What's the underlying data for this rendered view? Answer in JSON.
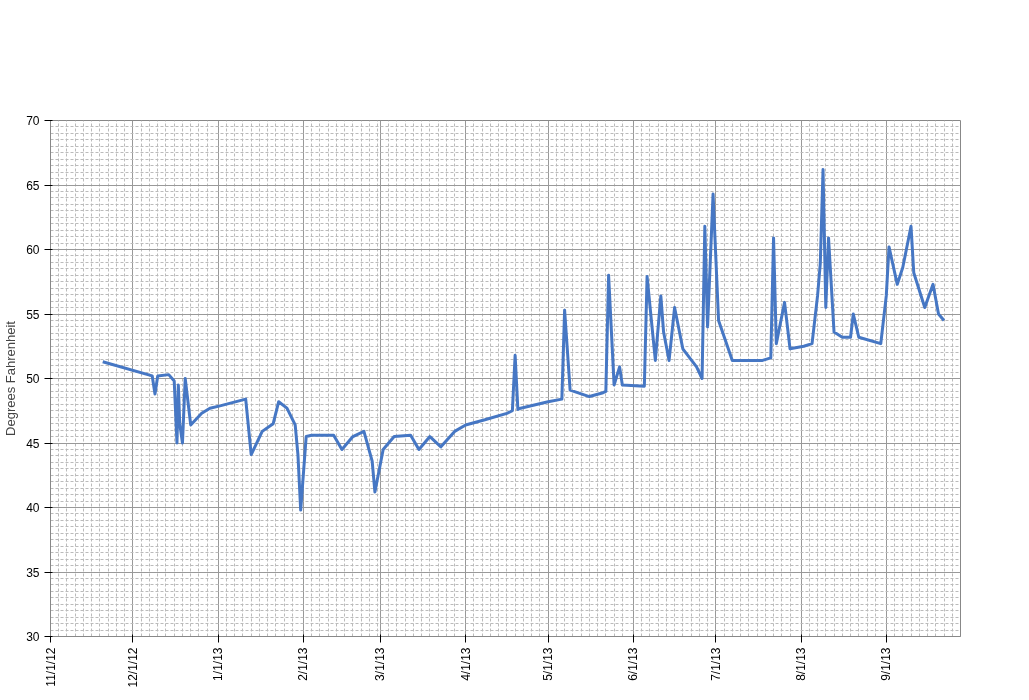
{
  "chart_data": {
    "type": "line",
    "ylabel": "Degrees Fahrenheit",
    "x": [
      "2012-11-20",
      "2012-12-08",
      "2012-12-09",
      "2012-12-10",
      "2012-12-14",
      "2012-12-16",
      "2012-12-17T00:00",
      "2012-12-17T12:00",
      "2012-12-18",
      "2012-12-19",
      "2012-12-20",
      "2012-12-22",
      "2012-12-26",
      "2012-12-29",
      "2013-01-02",
      "2013-01-11",
      "2013-01-13",
      "2013-01-17",
      "2013-01-21",
      "2013-01-23",
      "2013-01-26",
      "2013-01-29",
      "2013-01-30",
      "2013-01-31",
      "2013-02-02",
      "2013-02-04",
      "2013-02-12",
      "2013-02-15",
      "2013-02-19",
      "2013-02-23",
      "2013-02-26",
      "2013-02-27",
      "2013-03-02",
      "2013-03-06",
      "2013-03-12",
      "2013-03-15",
      "2013-03-19",
      "2013-03-23",
      "2013-03-28",
      "2013-04-01",
      "2013-04-08",
      "2013-04-16",
      "2013-04-18",
      "2013-04-19",
      "2013-04-20",
      "2013-04-21",
      "2013-05-01",
      "2013-05-06",
      "2013-05-07",
      "2013-05-09",
      "2013-05-16",
      "2013-05-21",
      "2013-05-22",
      "2013-05-23",
      "2013-05-25",
      "2013-05-27",
      "2013-05-28",
      "2013-06-05",
      "2013-06-06",
      "2013-06-09",
      "2013-06-11",
      "2013-06-12",
      "2013-06-14",
      "2013-06-16",
      "2013-06-19",
      "2013-06-24",
      "2013-06-26",
      "2013-06-27",
      "2013-06-28",
      "2013-06-30",
      "2013-07-02",
      "2013-07-07",
      "2013-07-18",
      "2013-07-21",
      "2013-07-22",
      "2013-07-23",
      "2013-07-26",
      "2013-07-28",
      "2013-08-02",
      "2013-08-05",
      "2013-08-07",
      "2013-08-08",
      "2013-08-09",
      "2013-08-10",
      "2013-08-11",
      "2013-08-13",
      "2013-08-16",
      "2013-08-19",
      "2013-08-20",
      "2013-08-22",
      "2013-08-30",
      "2013-09-01",
      "2013-09-02",
      "2013-09-05",
      "2013-09-07",
      "2013-09-10",
      "2013-09-11",
      "2013-09-15",
      "2013-09-18",
      "2013-09-20",
      "2013-09-22"
    ],
    "series": [
      {
        "color": "#4677c4",
        "values": [
          51.3,
          50.2,
          48.8,
          50.2,
          50.3,
          49.8,
          45.0,
          49.5,
          46.5,
          45.0,
          50.0,
          46.4,
          47.3,
          47.7,
          47.9,
          48.4,
          44.1,
          45.9,
          46.5,
          48.2,
          47.7,
          46.4,
          44.1,
          39.8,
          45.5,
          45.6,
          45.6,
          44.5,
          45.5,
          45.9,
          43.6,
          41.2,
          44.5,
          45.5,
          45.6,
          44.5,
          45.5,
          44.7,
          45.9,
          46.4,
          46.8,
          47.3,
          47.5,
          51.8,
          47.6,
          47.7,
          48.2,
          48.4,
          55.3,
          49.1,
          48.6,
          48.9,
          49.0,
          58.0,
          49.5,
          50.9,
          49.5,
          49.4,
          57.9,
          51.4,
          56.4,
          53.6,
          51.4,
          55.5,
          52.3,
          50.9,
          50.0,
          61.8,
          54.0,
          64.3,
          54.5,
          51.4,
          51.4,
          51.6,
          60.9,
          52.7,
          55.9,
          52.3,
          52.5,
          52.7,
          56.4,
          58.9,
          66.2,
          55.5,
          60.9,
          53.6,
          53.2,
          53.2,
          55.0,
          53.2,
          52.7,
          56.4,
          60.2,
          57.3,
          58.6,
          61.8,
          58.2,
          55.5,
          57.3,
          55.0,
          54.5
        ]
      }
    ],
    "xlim": [
      "2012-11-01",
      "2013-09-28"
    ],
    "xticks": [
      {
        "value": "2012-11-01",
        "label": "11/1/12"
      },
      {
        "value": "2012-12-01",
        "label": "12/1/12"
      },
      {
        "value": "2013-01-01",
        "label": "1/1/13"
      },
      {
        "value": "2013-02-01",
        "label": "2/1/13"
      },
      {
        "value": "2013-03-01",
        "label": "3/1/13"
      },
      {
        "value": "2013-04-01",
        "label": "4/1/13"
      },
      {
        "value": "2013-05-01",
        "label": "5/1/13"
      },
      {
        "value": "2013-06-01",
        "label": "6/1/13"
      },
      {
        "value": "2013-07-01",
        "label": "7/1/13"
      },
      {
        "value": "2013-08-01",
        "label": "8/1/13"
      },
      {
        "value": "2013-09-01",
        "label": "9/1/13"
      }
    ],
    "ylim": [
      30,
      70
    ],
    "yticks": [
      30,
      35,
      40,
      45,
      50,
      55,
      60,
      65,
      70
    ],
    "grid": true,
    "marker": "none",
    "line_style": "solid"
  }
}
